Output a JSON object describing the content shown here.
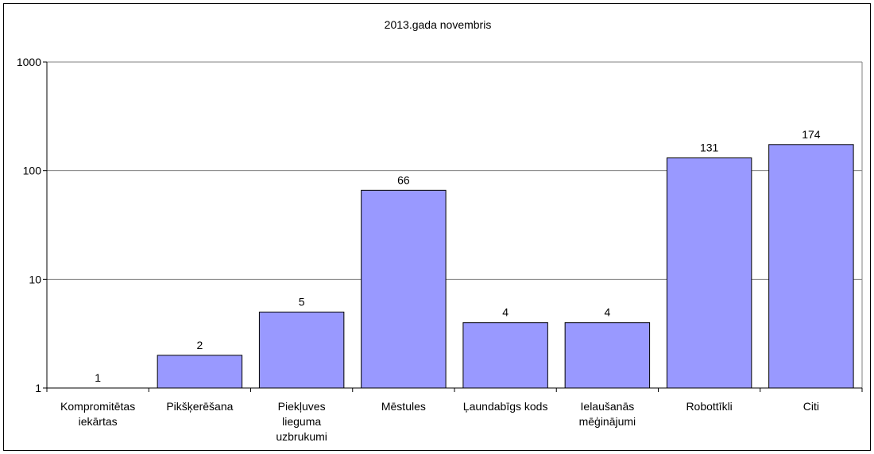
{
  "chart_data": {
    "type": "bar",
    "title": "2013.gada novembris",
    "categories": [
      [
        "Kompromitētas",
        "iekārtas"
      ],
      [
        "Pikšķerēšana"
      ],
      [
        "Piekļuves",
        "lieguma",
        "uzbrukumi"
      ],
      [
        "Mēstules"
      ],
      [
        "Ļaundabīgs kods"
      ],
      [
        "Ielaušanās",
        "mēģinājumi"
      ],
      [
        "Robottīkli"
      ],
      [
        "Citi"
      ]
    ],
    "values": [
      1,
      2,
      5,
      66,
      4,
      4,
      131,
      174
    ],
    "yscale": "log",
    "ylim": [
      1,
      1000
    ],
    "yticks": [
      1,
      10,
      100,
      1000
    ],
    "grid": true,
    "legend": "none",
    "colors": {
      "bar_fill": "#9999ff",
      "bar_stroke": "#000000",
      "grid": "#808080",
      "axis": "#000000"
    }
  }
}
